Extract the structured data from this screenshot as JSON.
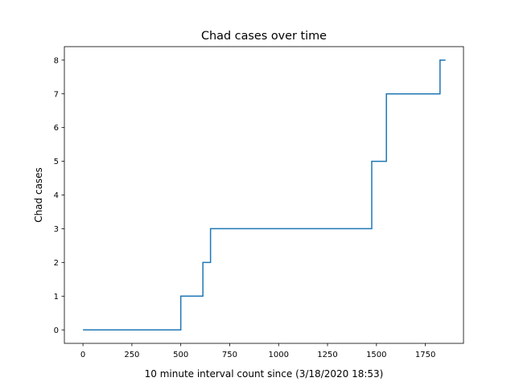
{
  "chart_data": {
    "type": "line",
    "title": "Chad cases over time",
    "xlabel": "10 minute interval count since (3/18/2020 18:53)",
    "ylabel": "Chad cases",
    "xlim": [
      -95,
      1945
    ],
    "ylim": [
      -0.4,
      8.4
    ],
    "xticks": [
      0,
      250,
      500,
      750,
      1000,
      1250,
      1500,
      1750
    ],
    "xtick_labels": [
      "0",
      "250",
      "500",
      "750",
      "1000",
      "1250",
      "1500",
      "1750"
    ],
    "yticks": [
      0,
      1,
      2,
      3,
      4,
      5,
      6,
      7,
      8
    ],
    "ytick_labels": [
      "0",
      "1",
      "2",
      "3",
      "4",
      "5",
      "6",
      "7",
      "8"
    ],
    "grid": false,
    "step": "post",
    "series": [
      {
        "color": "#1f77b4",
        "x": [
          0,
          500,
          613,
          652,
          1476,
          1551,
          1825,
          1853
        ],
        "y": [
          0,
          1,
          2,
          3,
          5,
          7,
          8,
          8
        ]
      }
    ]
  }
}
